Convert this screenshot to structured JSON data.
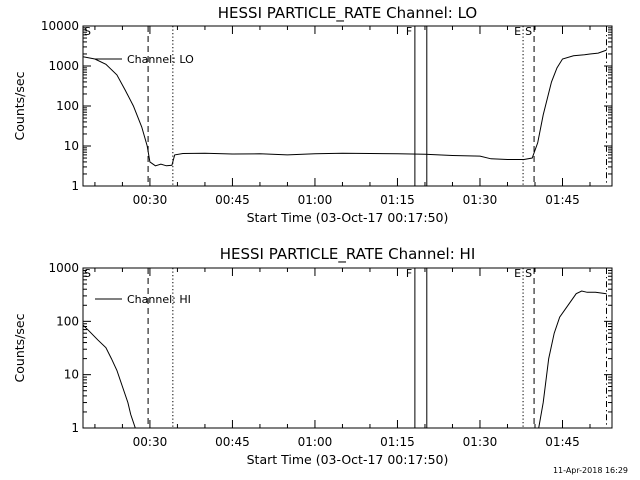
{
  "footer": {
    "timestamp": "11-Apr-2018 16:29"
  },
  "chart_data": [
    {
      "type": "line",
      "title": "HESSI PARTICLE_RATE Channel: LO",
      "xlabel": "Start Time (03-Oct-17 00:17:50)",
      "ylabel": "Counts/sec",
      "yscale": "log",
      "xlim": [
        "00:17:50",
        "01:54:00"
      ],
      "ylim": [
        1,
        10000
      ],
      "xticks": [
        "00:30",
        "00:45",
        "01:00",
        "01:15",
        "01:30",
        "01:45"
      ],
      "yticks": [
        "1",
        "10",
        "100",
        "1000",
        "10000"
      ],
      "legend": {
        "position": "top-left",
        "entries": [
          "Channel: LO"
        ]
      },
      "grid": false,
      "markers": [
        {
          "label": "S",
          "time": "00:17:50",
          "style": "dash-dot"
        },
        {
          "label": "",
          "time": "00:29:40",
          "style": "dashed"
        },
        {
          "label": "",
          "time": "00:34:10",
          "style": "dotted"
        },
        {
          "label": "F",
          "time": "01:18:10",
          "style": "solid"
        },
        {
          "label": "",
          "time": "01:20:20",
          "style": "solid"
        },
        {
          "label": "E",
          "time": "01:37:50",
          "style": "dotted"
        },
        {
          "label": "S",
          "time": "01:39:50",
          "style": "dashed"
        },
        {
          "label": "",
          "time": "01:53:00",
          "style": "dash-dot"
        }
      ],
      "series": [
        {
          "name": "Channel: LO",
          "gaps": [
            [
              300,
              2240
            ]
          ],
          "x": [
            "00:17:50",
            "00:20:00",
            "00:22:00",
            "00:24:00",
            "00:25:30",
            "00:27:00",
            "00:28:30",
            "00:29:30",
            "00:30:00",
            "00:31:00",
            "00:32:00",
            "00:33:00",
            "00:34:00",
            "00:34:30",
            "00:36:00",
            "00:40:00",
            "00:45:00",
            "00:50:00",
            "00:55:00",
            "01:00:00",
            "01:05:00",
            "01:10:00",
            "01:15:00",
            "01:20:00",
            "01:25:00",
            "01:30:00",
            "01:32:00",
            "01:35:00",
            "01:38:00",
            "01:39:30",
            "01:40:30",
            "01:41:30",
            "01:43:00",
            "01:44:00",
            "01:45:00",
            "01:47:00",
            "01:49:00",
            "01:50:00",
            "01:51:30",
            "01:53:00"
          ],
          "values": [
            1700,
            1500,
            1100,
            600,
            250,
            100,
            30,
            10,
            4,
            3.2,
            3.5,
            3.2,
            3.3,
            6,
            6.5,
            6.6,
            6.3,
            6.4,
            6.0,
            6.4,
            6.6,
            6.5,
            6.4,
            6.2,
            5.8,
            5.6,
            4.8,
            4.6,
            4.6,
            5,
            12,
            60,
            400,
            900,
            1500,
            1800,
            1900,
            2000,
            2100,
            2500
          ]
        }
      ]
    },
    {
      "type": "line",
      "title": "HESSI PARTICLE_RATE Channel: HI",
      "xlabel": "Start Time (03-Oct-17 00:17:50)",
      "ylabel": "Counts/sec",
      "yscale": "log",
      "xlim": [
        "00:17:50",
        "01:54:00"
      ],
      "ylim": [
        1,
        1000
      ],
      "xticks": [
        "00:30",
        "00:45",
        "01:00",
        "01:15",
        "01:30",
        "01:45"
      ],
      "yticks": [
        "1",
        "10",
        "100",
        "1000"
      ],
      "legend": {
        "position": "top-left",
        "entries": [
          "Channel: HI"
        ]
      },
      "grid": false,
      "markers": [
        {
          "label": "S",
          "time": "00:17:50",
          "style": "dash-dot"
        },
        {
          "label": "",
          "time": "00:29:40",
          "style": "dashed"
        },
        {
          "label": "",
          "time": "00:34:10",
          "style": "dotted"
        },
        {
          "label": "F",
          "time": "01:18:10",
          "style": "solid"
        },
        {
          "label": "",
          "time": "01:20:20",
          "style": "solid"
        },
        {
          "label": "E",
          "time": "01:37:50",
          "style": "dotted"
        },
        {
          "label": "S",
          "time": "01:39:50",
          "style": "dashed"
        },
        {
          "label": "",
          "time": "01:53:00",
          "style": "dash-dot"
        }
      ],
      "series": [
        {
          "name": "Channel: HI",
          "gaps": [
            [
              25,
              28
            ]
          ],
          "x": [
            "00:17:50",
            "00:19:00",
            "00:20:30",
            "00:22:00",
            "00:23:00",
            "00:24:00",
            "00:25:00",
            "00:26:00",
            "00:26:30",
            "00:27:20",
            "01:40:40",
            "01:41:30",
            "01:42:30",
            "01:43:30",
            "01:44:30",
            "01:46:00",
            "01:47:30",
            "01:48:30",
            "01:49:30",
            "01:51:00",
            "01:53:00"
          ],
          "values": [
            85,
            65,
            45,
            32,
            20,
            12,
            6,
            3,
            1.8,
            1,
            1,
            3,
            20,
            60,
            120,
            200,
            330,
            370,
            350,
            350,
            330
          ]
        }
      ]
    }
  ]
}
